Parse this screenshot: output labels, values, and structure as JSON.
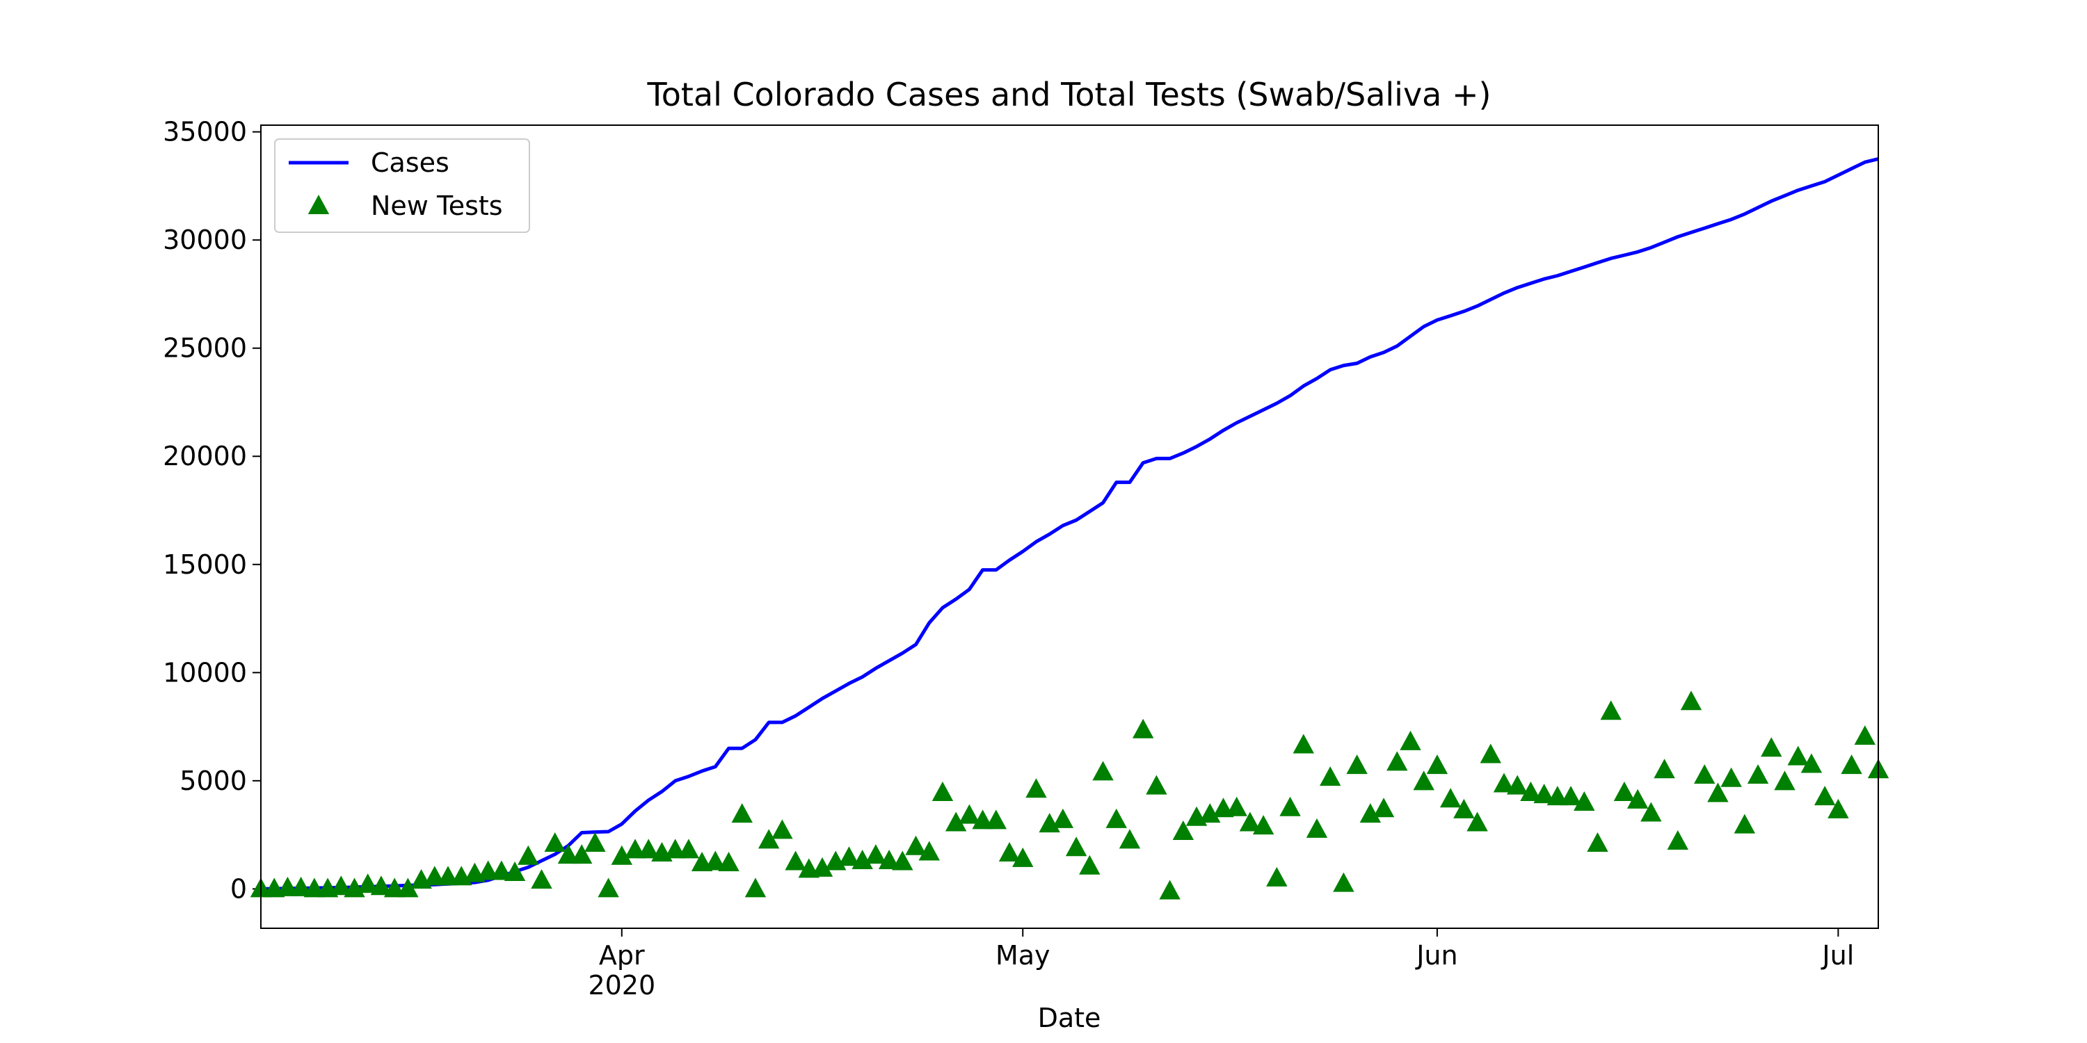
{
  "chart_data": {
    "type": "line",
    "title": "Total Colorado Cases and Total Tests (Swab/Saliva +)",
    "x_label": "Date",
    "x": [
      0,
      1,
      2,
      3,
      4,
      5,
      6,
      7,
      8,
      9,
      10,
      11,
      12,
      13,
      14,
      15,
      16,
      17,
      18,
      19,
      20,
      21,
      22,
      23,
      24,
      25,
      26,
      27,
      28,
      29,
      30,
      31,
      32,
      33,
      34,
      35,
      36,
      37,
      38,
      39,
      40,
      41,
      42,
      43,
      44,
      45,
      46,
      47,
      48,
      49,
      50,
      51,
      52,
      53,
      54,
      55,
      56,
      57,
      58,
      59,
      60,
      61,
      62,
      63,
      64,
      65,
      66,
      67,
      68,
      69,
      70,
      71,
      72,
      73,
      74,
      75,
      76,
      77,
      78,
      79,
      80,
      81,
      82,
      83,
      84,
      85,
      86,
      87,
      88,
      89,
      90,
      91,
      92,
      93,
      94,
      95,
      96,
      97,
      98,
      99,
      100,
      101,
      102,
      103,
      104,
      105,
      106,
      107,
      108,
      109,
      110,
      111,
      112,
      113,
      114,
      115,
      116,
      117,
      118,
      119,
      120,
      121
    ],
    "xlim": [
      0,
      121
    ],
    "xticks": [
      {
        "value": 27,
        "label": "Apr\n2020"
      },
      {
        "value": 57,
        "label": "May"
      },
      {
        "value": 88,
        "label": "Jun"
      },
      {
        "value": 118,
        "label": "Jul"
      }
    ],
    "ylim": [
      -1820,
      35310
    ],
    "yticks": [
      0,
      5000,
      10000,
      15000,
      20000,
      25000,
      30000,
      35000
    ],
    "grid": false,
    "legend": "upper left",
    "series": [
      {
        "name": "Cases",
        "color": "#0000ff",
        "mode": "line",
        "values": [
          0,
          10,
          20,
          30,
          40,
          50,
          60,
          80,
          100,
          120,
          140,
          160,
          180,
          200,
          230,
          260,
          300,
          400,
          600,
          800,
          1000,
          1300,
          1600,
          2000,
          2600,
          2630,
          2650,
          3000,
          3600,
          4100,
          4500,
          5000,
          5200,
          5450,
          5650,
          6500,
          6500,
          6900,
          7700,
          7700,
          8000,
          8400,
          8800,
          9150,
          9500,
          9800,
          10200,
          10550,
          10900,
          11300,
          12300,
          13000,
          13400,
          13850,
          14750,
          14750,
          15200,
          15600,
          16050,
          16400,
          16800,
          17050,
          17450,
          17850,
          18800,
          18800,
          19700,
          19900,
          19900,
          20150,
          20450,
          20800,
          21200,
          21550,
          21850,
          22150,
          22450,
          22800,
          23250,
          23600,
          24000,
          24200,
          24300,
          24600,
          24800,
          25100,
          25550,
          26000,
          26300,
          26500,
          26700,
          26950,
          27250,
          27550,
          27800,
          28000,
          28200,
          28350,
          28550,
          28750,
          28950,
          29150,
          29300,
          29450,
          29650,
          29900,
          30150,
          30350,
          30550,
          30750,
          30950,
          31200,
          31500,
          31800,
          32050,
          32300,
          32500,
          32700,
          33000,
          33300,
          33600,
          33750
        ]
      },
      {
        "name": "New Tests",
        "color": "#008000",
        "mode": "markers",
        "marker": "triangle",
        "values": [
          0,
          0,
          50,
          50,
          0,
          0,
          100,
          0,
          200,
          100,
          0,
          0,
          400,
          550,
          550,
          550,
          700,
          800,
          800,
          750,
          1500,
          400,
          2100,
          1550,
          1550,
          2100,
          0,
          1500,
          1800,
          1800,
          1650,
          1800,
          1800,
          1200,
          1250,
          1200,
          3450,
          0,
          2250,
          2700,
          1250,
          900,
          950,
          1250,
          1450,
          1300,
          1550,
          1300,
          1250,
          1950,
          1700,
          4450,
          3050,
          3400,
          3150,
          3150,
          1650,
          1400,
          4600,
          3000,
          3200,
          1900,
          1050,
          5400,
          3200,
          2250,
          7350,
          4750,
          -100,
          2650,
          3300,
          3450,
          3700,
          3750,
          3050,
          2900,
          500,
          3750,
          6650,
          2750,
          5150,
          250,
          5700,
          3450,
          3700,
          5850,
          6800,
          4950,
          5700,
          4150,
          3650,
          3050,
          6200,
          4850,
          4750,
          4450,
          4350,
          4250,
          4250,
          4000,
          2100,
          8200,
          4450,
          4100,
          3500,
          5500,
          2200,
          8650,
          5250,
          4400,
          5100,
          2950,
          5250,
          6500,
          4950,
          6100,
          5750,
          4250,
          3650,
          5700,
          7050,
          5500
        ]
      }
    ]
  }
}
